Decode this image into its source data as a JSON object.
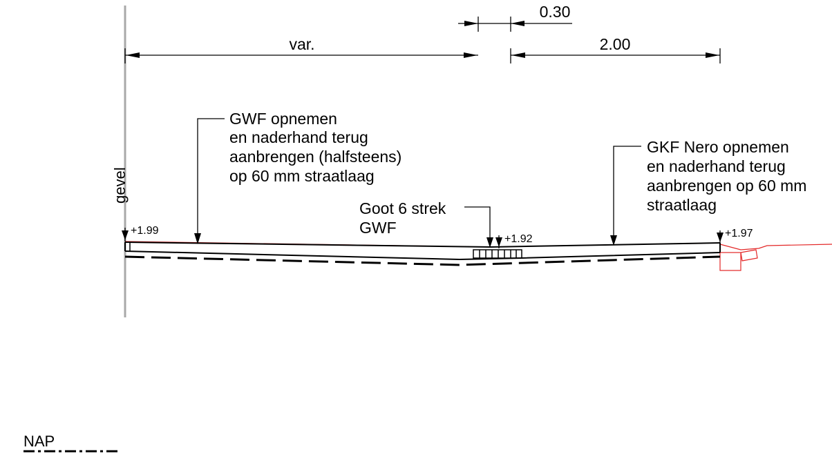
{
  "dimensions": {
    "var": "var.",
    "gutter_width": "0.30",
    "right_width": "2.00"
  },
  "labels": {
    "facade": "gevel",
    "left_note": [
      "GWF opnemen",
      "en naderhand terug",
      "aanbrengen (halfsteens)",
      "op 60 mm straatlaag"
    ],
    "gutter_note": [
      "Goot 6 strek",
      "GWF"
    ],
    "right_note": [
      "GKF Nero opnemen",
      "en naderhand terug",
      "aanbrengen op 60 mm",
      "straatlaag"
    ],
    "datum": "NAP"
  },
  "levels": {
    "left": "+1.99",
    "gutter": "+1.92",
    "right": "+1.97"
  },
  "colors": {
    "line": "#000000",
    "existing_profile": "#e32626",
    "facade_wall": "#a8a8a8"
  }
}
